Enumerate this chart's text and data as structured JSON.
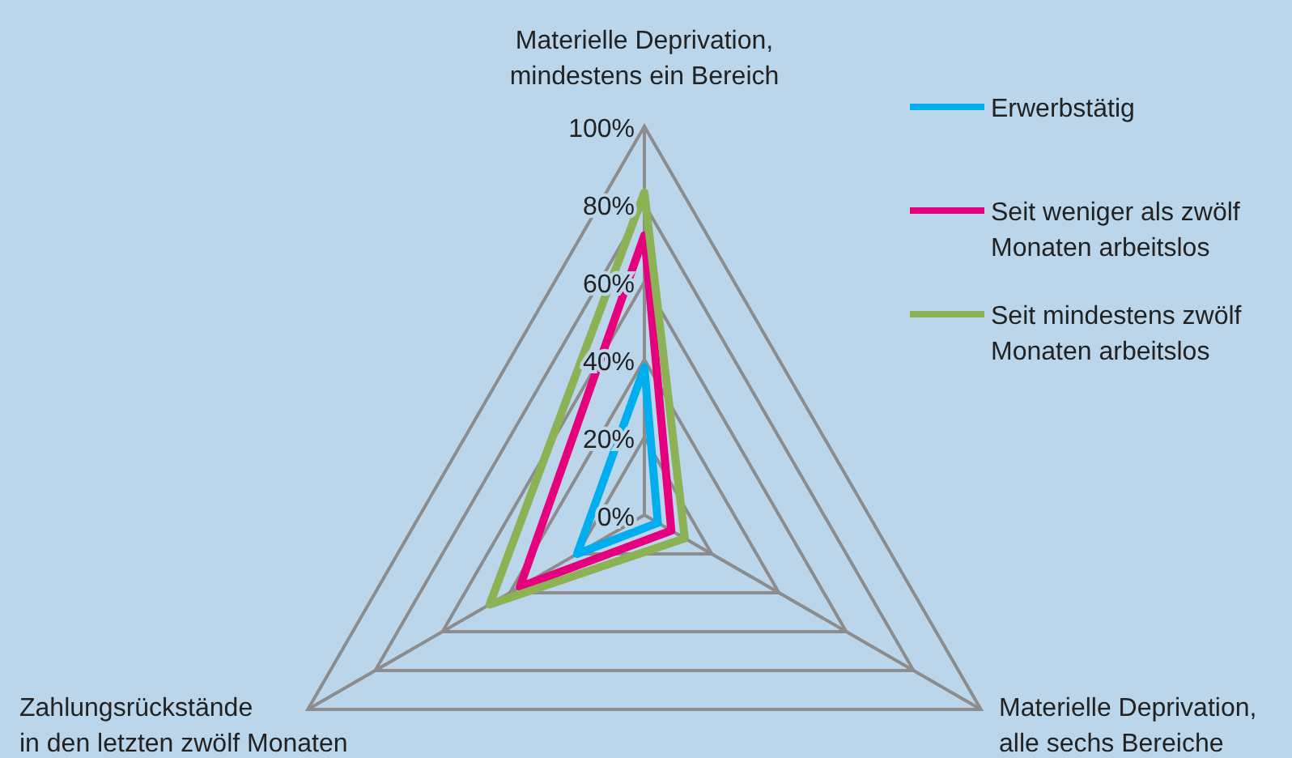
{
  "chart_data": {
    "type": "radar",
    "categories": [
      "Materielle Deprivation, mindestens ein Bereich",
      "Materielle Deprivation, alle sechs Bereiche",
      "Zahlungsrückstände in den letzten zwölf Monaten"
    ],
    "series": [
      {
        "name": "Erwerbstätig",
        "color": "#00aeef",
        "values": [
          38,
          4,
          20
        ]
      },
      {
        "name": "Seit weniger als zwölf Monaten arbeitslos",
        "color": "#e5007d",
        "values": [
          72,
          8,
          37
        ]
      },
      {
        "name": "Seit mindestens zwölf Monaten arbeitslos",
        "color": "#8db255",
        "values": [
          83,
          12,
          46
        ]
      }
    ],
    "ylim": [
      0,
      100
    ],
    "yticks": [
      {
        "value": 0,
        "label": "0%"
      },
      {
        "value": 20,
        "label": "20%"
      },
      {
        "value": 40,
        "label": "40%"
      },
      {
        "value": 60,
        "label": "60%"
      },
      {
        "value": 80,
        "label": "80%"
      },
      {
        "value": 100,
        "label": "100%"
      }
    ],
    "grid": true,
    "legend": "top right"
  }
}
